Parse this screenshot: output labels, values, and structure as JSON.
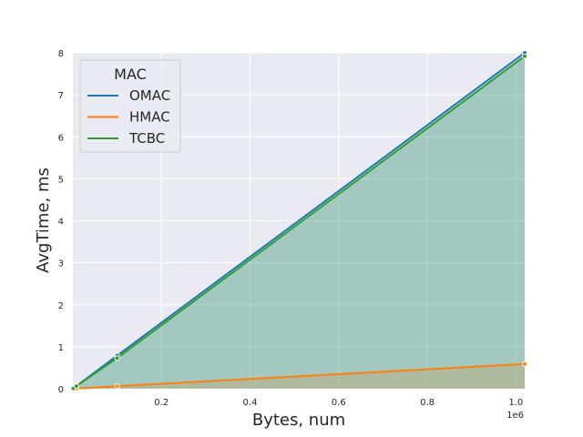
{
  "chart_data": {
    "type": "line",
    "xlabel": "Bytes, num",
    "ylabel": "AvgTime, ms",
    "x_offset_label": "1e6",
    "xlim": [
      0,
      1020000
    ],
    "ylim": [
      0,
      8
    ],
    "xticks": [
      0.2,
      0.4,
      0.6,
      0.8,
      1.0
    ],
    "xtick_labels": [
      "0.2",
      "0.4",
      "0.6",
      "0.8",
      "1.0"
    ],
    "yticks": [
      0,
      1,
      2,
      3,
      4,
      5,
      6,
      7,
      8
    ],
    "ytick_labels": [
      "0",
      "1",
      "2",
      "3",
      "4",
      "5",
      "6",
      "7",
      "8"
    ],
    "grid": true,
    "legend": {
      "title": "MAC",
      "placement": "top-left"
    },
    "x": [
      1000,
      8000,
      100000,
      1020000
    ],
    "series": [
      {
        "name": "OMAC",
        "color": "#1f77b4",
        "values": [
          0.008,
          0.064,
          0.79,
          8.0
        ]
      },
      {
        "name": "HMAC",
        "color": "#ff7f0e",
        "values": [
          0.0006,
          0.005,
          0.06,
          0.59
        ]
      },
      {
        "name": "TCBC",
        "color": "#2ca02c",
        "values": [
          0.008,
          0.062,
          0.73,
          7.92
        ]
      }
    ]
  }
}
